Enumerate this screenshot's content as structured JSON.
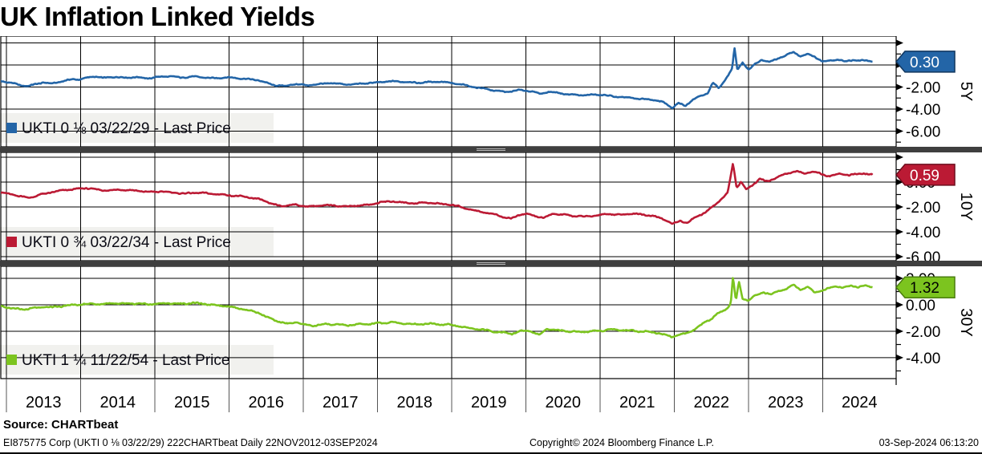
{
  "title": "UK Inflation Linked Yields",
  "source_line": "Source: CHARTbeat",
  "footer": {
    "left": "EI875775 Corp (UKTI 0 ⅛  03/22/29) 222CHARTbeat  Daily 22NOV2012-03SEP2024",
    "center": "Copyright© 2024 Bloomberg Finance L.P.",
    "right": "03-Sep-2024 06:13:20"
  },
  "colors": {
    "blue": "#2365a7",
    "blue_dark": "#11365e",
    "red": "#bb1a34",
    "red_dark": "#6e0e1e",
    "green": "#7cc41f",
    "green_dark": "#4a7d0e",
    "separator": "#3f3f3f",
    "grip": "#b9b9b9",
    "legend_bg": "#f1f1ee",
    "grid": "#000000",
    "tag_text_light": "#ffffff",
    "tag_text_dark": "#000000"
  },
  "x_axis": {
    "start": 2012.914,
    "end": 2024.99,
    "year_lines": [
      2013,
      2014,
      2015,
      2016,
      2017,
      2018,
      2019,
      2020,
      2021,
      2022,
      2023,
      2024
    ],
    "year_labels": [
      "2013",
      "2014",
      "2015",
      "2016",
      "2017",
      "2018",
      "2019",
      "2020",
      "2021",
      "2022",
      "2023",
      "2024"
    ]
  },
  "chart_data": [
    {
      "type": "line",
      "id": "5y",
      "ylabel": "5Y",
      "legend_label": "UKTI 0 ⅛  03/22/29 - Last Price",
      "last_price": "0.30",
      "last_value": 0.3,
      "ylim": [
        -7.42,
        2.62
      ],
      "grid_values": [
        2,
        0,
        -2,
        -4,
        -6
      ],
      "labeled_ticks": [
        0,
        -2,
        -4,
        -6
      ],
      "minor_ticks": [
        1,
        -1,
        -3,
        -5,
        -7
      ],
      "color_key": "blue",
      "tag_text": "light",
      "noise": 0.045,
      "points": [
        [
          2012.9,
          -1.42
        ],
        [
          2013.0,
          -1.55
        ],
        [
          2013.1,
          -1.68
        ],
        [
          2013.2,
          -1.85
        ],
        [
          2013.3,
          -1.92
        ],
        [
          2013.4,
          -1.72
        ],
        [
          2013.5,
          -1.58
        ],
        [
          2013.6,
          -1.7
        ],
        [
          2013.7,
          -1.55
        ],
        [
          2013.8,
          -1.42
        ],
        [
          2013.9,
          -1.28
        ],
        [
          2014.0,
          -1.32
        ],
        [
          2014.1,
          -1.12
        ],
        [
          2014.2,
          -1.05
        ],
        [
          2014.3,
          -1.18
        ],
        [
          2014.45,
          -1.08
        ],
        [
          2014.6,
          -1.15
        ],
        [
          2014.75,
          -1.1
        ],
        [
          2014.9,
          -1.22
        ],
        [
          2015.05,
          -1.08
        ],
        [
          2015.2,
          -1.02
        ],
        [
          2015.35,
          -1.15
        ],
        [
          2015.5,
          -1.05
        ],
        [
          2015.65,
          -1.12
        ],
        [
          2015.8,
          -1.22
        ],
        [
          2015.95,
          -1.12
        ],
        [
          2016.1,
          -1.18
        ],
        [
          2016.25,
          -1.28
        ],
        [
          2016.4,
          -1.38
        ],
        [
          2016.5,
          -1.62
        ],
        [
          2016.6,
          -1.82
        ],
        [
          2016.75,
          -1.92
        ],
        [
          2016.9,
          -1.72
        ],
        [
          2017.05,
          -1.85
        ],
        [
          2017.2,
          -1.75
        ],
        [
          2017.35,
          -1.65
        ],
        [
          2017.5,
          -1.72
        ],
        [
          2017.65,
          -1.78
        ],
        [
          2017.8,
          -1.68
        ],
        [
          2017.95,
          -1.62
        ],
        [
          2018.1,
          -1.52
        ],
        [
          2018.25,
          -1.48
        ],
        [
          2018.4,
          -1.55
        ],
        [
          2018.55,
          -1.62
        ],
        [
          2018.7,
          -1.55
        ],
        [
          2018.85,
          -1.5
        ],
        [
          2019.0,
          -1.65
        ],
        [
          2019.15,
          -1.8
        ],
        [
          2019.3,
          -2.0
        ],
        [
          2019.45,
          -2.15
        ],
        [
          2019.6,
          -2.35
        ],
        [
          2019.75,
          -2.45
        ],
        [
          2019.9,
          -2.28
        ],
        [
          2020.05,
          -2.35
        ],
        [
          2020.2,
          -2.62
        ],
        [
          2020.3,
          -2.42
        ],
        [
          2020.45,
          -2.55
        ],
        [
          2020.6,
          -2.68
        ],
        [
          2020.75,
          -2.75
        ],
        [
          2020.9,
          -2.7
        ],
        [
          2021.05,
          -2.72
        ],
        [
          2021.2,
          -2.88
        ],
        [
          2021.35,
          -2.95
        ],
        [
          2021.55,
          -3.08
        ],
        [
          2021.7,
          -3.15
        ],
        [
          2021.85,
          -3.35
        ],
        [
          2021.97,
          -3.92
        ],
        [
          2022.05,
          -3.45
        ],
        [
          2022.15,
          -3.72
        ],
        [
          2022.25,
          -3.1
        ],
        [
          2022.35,
          -2.82
        ],
        [
          2022.45,
          -2.58
        ],
        [
          2022.52,
          -1.55
        ],
        [
          2022.6,
          -2.15
        ],
        [
          2022.7,
          -1.2
        ],
        [
          2022.78,
          -0.3
        ],
        [
          2022.81,
          1.55
        ],
        [
          2022.85,
          -0.45
        ],
        [
          2022.92,
          0.25
        ],
        [
          2023.0,
          -0.45
        ],
        [
          2023.08,
          0.05
        ],
        [
          2023.18,
          0.48
        ],
        [
          2023.28,
          0.25
        ],
        [
          2023.4,
          0.6
        ],
        [
          2023.5,
          0.85
        ],
        [
          2023.6,
          1.18
        ],
        [
          2023.7,
          0.8
        ],
        [
          2023.8,
          1.0
        ],
        [
          2023.9,
          0.72
        ],
        [
          2024.0,
          0.3
        ],
        [
          2024.1,
          0.42
        ],
        [
          2024.2,
          0.5
        ],
        [
          2024.3,
          0.32
        ],
        [
          2024.4,
          0.45
        ],
        [
          2024.5,
          0.38
        ],
        [
          2024.58,
          0.42
        ],
        [
          2024.67,
          0.3
        ]
      ]
    },
    {
      "type": "line",
      "id": "10y",
      "ylabel": "10Y",
      "legend_label": "UKTI 0 ¾  03/22/34 - Last Price",
      "last_price": "0.59",
      "last_value": 0.59,
      "ylim": [
        -6.32,
        2.39
      ],
      "grid_values": [
        2,
        0,
        -2,
        -4,
        -6
      ],
      "labeled_ticks": [
        0,
        -2,
        -4,
        -6
      ],
      "minor_ticks": [
        1,
        -1,
        -3,
        -5
      ],
      "color_key": "red",
      "tag_text": "light",
      "noise": 0.045,
      "points": [
        [
          2012.9,
          -0.82
        ],
        [
          2013.0,
          -0.92
        ],
        [
          2013.1,
          -1.02
        ],
        [
          2013.22,
          -1.18
        ],
        [
          2013.32,
          -1.25
        ],
        [
          2013.45,
          -1.02
        ],
        [
          2013.58,
          -0.85
        ],
        [
          2013.7,
          -0.72
        ],
        [
          2013.82,
          -0.62
        ],
        [
          2013.95,
          -0.55
        ],
        [
          2014.08,
          -0.48
        ],
        [
          2014.2,
          -0.58
        ],
        [
          2014.35,
          -0.68
        ],
        [
          2014.5,
          -0.6
        ],
        [
          2014.65,
          -0.65
        ],
        [
          2014.8,
          -0.72
        ],
        [
          2014.95,
          -0.8
        ],
        [
          2015.1,
          -0.75
        ],
        [
          2015.25,
          -0.85
        ],
        [
          2015.4,
          -0.92
        ],
        [
          2015.55,
          -0.85
        ],
        [
          2015.7,
          -0.9
        ],
        [
          2015.85,
          -0.98
        ],
        [
          2016.0,
          -1.05
        ],
        [
          2016.15,
          -1.15
        ],
        [
          2016.3,
          -1.25
        ],
        [
          2016.45,
          -1.45
        ],
        [
          2016.55,
          -1.7
        ],
        [
          2016.7,
          -1.95
        ],
        [
          2016.85,
          -1.8
        ],
        [
          2017.0,
          -1.92
        ],
        [
          2017.15,
          -1.95
        ],
        [
          2017.3,
          -1.85
        ],
        [
          2017.45,
          -1.9
        ],
        [
          2017.6,
          -1.95
        ],
        [
          2017.75,
          -1.88
        ],
        [
          2017.9,
          -1.82
        ],
        [
          2018.05,
          -1.6
        ],
        [
          2018.2,
          -1.55
        ],
        [
          2018.35,
          -1.65
        ],
        [
          2018.5,
          -1.7
        ],
        [
          2018.65,
          -1.65
        ],
        [
          2018.8,
          -1.72
        ],
        [
          2018.95,
          -1.8
        ],
        [
          2019.1,
          -1.95
        ],
        [
          2019.25,
          -2.2
        ],
        [
          2019.4,
          -2.4
        ],
        [
          2019.55,
          -2.55
        ],
        [
          2019.7,
          -2.8
        ],
        [
          2019.8,
          -2.95
        ],
        [
          2019.9,
          -2.65
        ],
        [
          2020.0,
          -2.55
        ],
        [
          2020.15,
          -2.75
        ],
        [
          2020.25,
          -2.9
        ],
        [
          2020.35,
          -2.55
        ],
        [
          2020.5,
          -2.62
        ],
        [
          2020.65,
          -2.72
        ],
        [
          2020.8,
          -2.78
        ],
        [
          2020.95,
          -2.68
        ],
        [
          2021.1,
          -2.55
        ],
        [
          2021.25,
          -2.62
        ],
        [
          2021.4,
          -2.55
        ],
        [
          2021.55,
          -2.58
        ],
        [
          2021.7,
          -2.72
        ],
        [
          2021.85,
          -2.95
        ],
        [
          2021.97,
          -3.38
        ],
        [
          2022.08,
          -3.1
        ],
        [
          2022.18,
          -3.28
        ],
        [
          2022.3,
          -2.75
        ],
        [
          2022.42,
          -2.45
        ],
        [
          2022.52,
          -1.95
        ],
        [
          2022.62,
          -1.45
        ],
        [
          2022.72,
          -0.85
        ],
        [
          2022.79,
          1.52
        ],
        [
          2022.84,
          -0.45
        ],
        [
          2022.9,
          0.05
        ],
        [
          2022.97,
          -0.62
        ],
        [
          2023.05,
          -0.25
        ],
        [
          2023.15,
          0.25
        ],
        [
          2023.25,
          0.05
        ],
        [
          2023.35,
          0.3
        ],
        [
          2023.45,
          0.55
        ],
        [
          2023.55,
          0.75
        ],
        [
          2023.65,
          0.88
        ],
        [
          2023.75,
          0.65
        ],
        [
          2023.85,
          0.88
        ],
        [
          2023.95,
          0.72
        ],
        [
          2024.05,
          0.48
        ],
        [
          2024.15,
          0.55
        ],
        [
          2024.25,
          0.68
        ],
        [
          2024.35,
          0.55
        ],
        [
          2024.45,
          0.62
        ],
        [
          2024.55,
          0.72
        ],
        [
          2024.67,
          0.59
        ]
      ]
    },
    {
      "type": "line",
      "id": "30y",
      "ylabel": "30Y",
      "legend_label": "UKTI 1 ¼  11/22/54 - Last Price",
      "last_price": "1.32",
      "last_value": 1.32,
      "ylim": [
        -5.58,
        2.91
      ],
      "grid_values": [
        2,
        0,
        -2,
        -4
      ],
      "labeled_ticks": [
        2,
        0,
        -2,
        -4
      ],
      "minor_ticks": [
        1,
        -1,
        -3,
        -5
      ],
      "color_key": "green",
      "tag_text": "dark",
      "noise": 0.05,
      "points": [
        [
          2012.9,
          -0.1
        ],
        [
          2013.0,
          -0.18
        ],
        [
          2013.12,
          -0.28
        ],
        [
          2013.25,
          -0.35
        ],
        [
          2013.38,
          -0.22
        ],
        [
          2013.5,
          -0.15
        ],
        [
          2013.62,
          -0.2
        ],
        [
          2013.75,
          -0.1
        ],
        [
          2013.88,
          -0.02
        ],
        [
          2014.0,
          0.02
        ],
        [
          2014.15,
          0.08
        ],
        [
          2014.3,
          0.05
        ],
        [
          2014.45,
          0.1
        ],
        [
          2014.6,
          0.06
        ],
        [
          2014.75,
          0.1
        ],
        [
          2014.9,
          0.04
        ],
        [
          2015.05,
          0.08
        ],
        [
          2015.2,
          0.12
        ],
        [
          2015.35,
          0.06
        ],
        [
          2015.5,
          0.15
        ],
        [
          2015.62,
          0.08
        ],
        [
          2015.75,
          0.02
        ],
        [
          2015.88,
          -0.05
        ],
        [
          2016.0,
          -0.12
        ],
        [
          2016.12,
          -0.25
        ],
        [
          2016.25,
          -0.4
        ],
        [
          2016.4,
          -0.6
        ],
        [
          2016.52,
          -0.95
        ],
        [
          2016.65,
          -1.25
        ],
        [
          2016.78,
          -1.45
        ],
        [
          2016.9,
          -1.3
        ],
        [
          2017.02,
          -1.52
        ],
        [
          2017.15,
          -1.58
        ],
        [
          2017.3,
          -1.45
        ],
        [
          2017.45,
          -1.5
        ],
        [
          2017.6,
          -1.55
        ],
        [
          2017.75,
          -1.48
        ],
        [
          2017.9,
          -1.45
        ],
        [
          2018.05,
          -1.38
        ],
        [
          2018.2,
          -1.32
        ],
        [
          2018.35,
          -1.42
        ],
        [
          2018.5,
          -1.48
        ],
        [
          2018.65,
          -1.42
        ],
        [
          2018.8,
          -1.45
        ],
        [
          2018.95,
          -1.5
        ],
        [
          2019.1,
          -1.62
        ],
        [
          2019.25,
          -1.78
        ],
        [
          2019.4,
          -1.88
        ],
        [
          2019.55,
          -2.0
        ],
        [
          2019.7,
          -2.1
        ],
        [
          2019.82,
          -2.18
        ],
        [
          2019.92,
          -2.0
        ],
        [
          2020.05,
          -1.95
        ],
        [
          2020.18,
          -2.3
        ],
        [
          2020.28,
          -1.8
        ],
        [
          2020.4,
          -1.92
        ],
        [
          2020.55,
          -1.98
        ],
        [
          2020.7,
          -2.05
        ],
        [
          2020.85,
          -2.02
        ],
        [
          2021.0,
          -1.95
        ],
        [
          2021.15,
          -1.85
        ],
        [
          2021.3,
          -1.92
        ],
        [
          2021.45,
          -1.95
        ],
        [
          2021.6,
          -2.02
        ],
        [
          2021.78,
          -2.12
        ],
        [
          2021.97,
          -2.42
        ],
        [
          2022.08,
          -2.25
        ],
        [
          2022.18,
          -2.15
        ],
        [
          2022.3,
          -1.75
        ],
        [
          2022.42,
          -1.3
        ],
        [
          2022.5,
          -1.05
        ],
        [
          2022.58,
          -0.7
        ],
        [
          2022.68,
          -0.45
        ],
        [
          2022.76,
          0.1
        ],
        [
          2022.79,
          2.15
        ],
        [
          2022.83,
          0.3
        ],
        [
          2022.87,
          1.7
        ],
        [
          2022.92,
          0.45
        ],
        [
          2023.0,
          0.35
        ],
        [
          2023.1,
          0.72
        ],
        [
          2023.2,
          0.95
        ],
        [
          2023.3,
          0.8
        ],
        [
          2023.4,
          1.05
        ],
        [
          2023.5,
          1.2
        ],
        [
          2023.6,
          1.5
        ],
        [
          2023.7,
          1.15
        ],
        [
          2023.8,
          1.35
        ],
        [
          2023.88,
          0.95
        ],
        [
          2023.97,
          1.05
        ],
        [
          2024.08,
          1.25
        ],
        [
          2024.18,
          1.42
        ],
        [
          2024.28,
          1.3
        ],
        [
          2024.38,
          1.45
        ],
        [
          2024.48,
          1.35
        ],
        [
          2024.58,
          1.42
        ],
        [
          2024.67,
          1.32
        ]
      ]
    }
  ]
}
